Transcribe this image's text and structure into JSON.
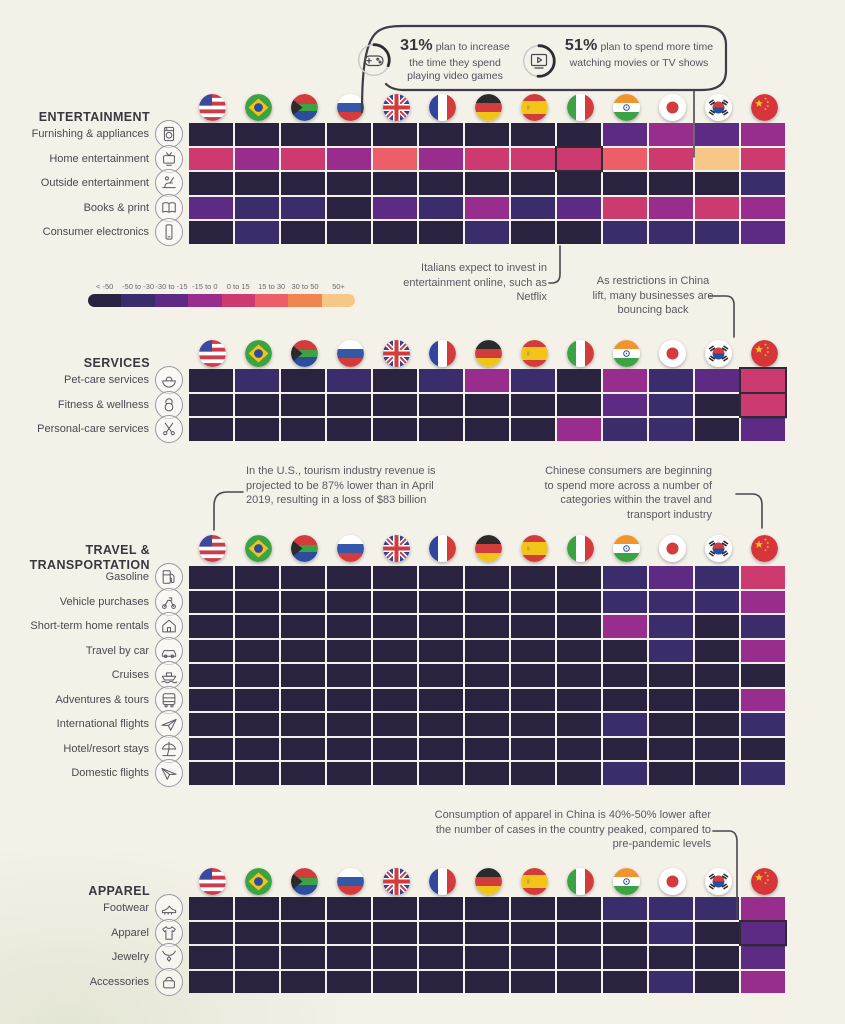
{
  "stats": {
    "items": [
      {
        "icon": "gamepad-icon",
        "value": "31%",
        "text": "plan to increase the time they spend playing video games"
      },
      {
        "icon": "tv-play-icon",
        "value": "51%",
        "text": "plan to spend more time watching movies or TV shows"
      }
    ]
  },
  "legend": {
    "labels": [
      "< -50",
      "-50 to -30",
      "-30 to -15",
      "-15 to 0",
      "0 to 15",
      "15 to 30",
      "30 to 50",
      "50+"
    ],
    "colors": [
      "#2a2340",
      "#3b2d6b",
      "#5d2a84",
      "#982d8e",
      "#cd3a70",
      "#ed5f68",
      "#ef854f",
      "#f6c787"
    ],
    "highlight_border": "#2e2b37"
  },
  "countries": [
    {
      "name": "United States",
      "code": "us"
    },
    {
      "name": "Brazil",
      "code": "br"
    },
    {
      "name": "South Africa",
      "code": "za"
    },
    {
      "name": "Russia",
      "code": "ru"
    },
    {
      "name": "United Kingdom",
      "code": "gb"
    },
    {
      "name": "France",
      "code": "fr"
    },
    {
      "name": "Germany",
      "code": "de"
    },
    {
      "name": "Spain",
      "code": "es"
    },
    {
      "name": "Italy",
      "code": "it"
    },
    {
      "name": "India",
      "code": "in"
    },
    {
      "name": "Japan",
      "code": "jp"
    },
    {
      "name": "South Korea",
      "code": "kr"
    },
    {
      "name": "China",
      "code": "cn"
    }
  ],
  "annotations": [
    {
      "id": "italy-netflix",
      "text": "Italians expect to invest in entertainment online, such as Netflix"
    },
    {
      "id": "china-bounce-back",
      "text": "As restrictions in China lift, many businesses are bouncing back"
    },
    {
      "id": "us-tourism",
      "text": "In the U.S., tourism industry revenue is projected to be 87% lower than in April 2019, resulting in a loss of $83 billion"
    },
    {
      "id": "china-travel-spend",
      "text": "Chinese consumers are beginning to spend more across a number of categories within the travel and transport industry"
    },
    {
      "id": "china-apparel",
      "text": "Consumption of apparel in China is 40%-50% lower after the number of cases in the country peaked, compared to pre-pandemic levels"
    }
  ],
  "chart_data": {
    "type": "heatmap",
    "value_buckets": [
      "< -50",
      "-50 to -30",
      "-30 to -15",
      "-15 to 0",
      "0 to 15",
      "15 to 30",
      "30 to 50",
      "50+"
    ],
    "columns": [
      "United States",
      "Brazil",
      "South Africa",
      "Russia",
      "United Kingdom",
      "France",
      "Germany",
      "Spain",
      "Italy",
      "India",
      "Japan",
      "South Korea",
      "China"
    ],
    "note": "cell values are bucket indices 0-7 into value_buckets"
  },
  "sections": [
    {
      "title": "ENTERTAINMENT",
      "rows": [
        {
          "label": "Furnishing & appliances",
          "icon": "washing-machine-icon",
          "values": [
            0,
            0,
            0,
            0,
            0,
            0,
            0,
            0,
            0,
            2,
            3,
            2,
            3
          ]
        },
        {
          "label": "Home entertainment",
          "icon": "tv-icon",
          "values": [
            4,
            3,
            4,
            3,
            5,
            3,
            4,
            4,
            4,
            5,
            4,
            7,
            4
          ],
          "highlight": [
            8
          ]
        },
        {
          "label": "Outside entertainment",
          "icon": "picnic-icon",
          "values": [
            0,
            0,
            0,
            0,
            0,
            0,
            0,
            0,
            0,
            0,
            0,
            0,
            1
          ]
        },
        {
          "label": "Books & print",
          "icon": "book-icon",
          "values": [
            2,
            1,
            1,
            0,
            2,
            1,
            3,
            1,
            2,
            4,
            3,
            4,
            3
          ]
        },
        {
          "label": "Consumer electronics",
          "icon": "smartphone-icon",
          "values": [
            0,
            1,
            0,
            0,
            0,
            0,
            1,
            0,
            0,
            1,
            1,
            1,
            2
          ]
        }
      ]
    },
    {
      "title": "SERVICES",
      "rows": [
        {
          "label": "Pet-care services",
          "icon": "pet-food-icon",
          "values": [
            0,
            1,
            0,
            1,
            0,
            1,
            3,
            1,
            0,
            3,
            1,
            2,
            4
          ],
          "highlight": [
            12
          ]
        },
        {
          "label": "Fitness & wellness",
          "icon": "fitness-icon",
          "values": [
            0,
            0,
            0,
            0,
            0,
            0,
            0,
            0,
            0,
            2,
            1,
            0,
            4
          ],
          "highlight": [
            12
          ]
        },
        {
          "label": "Personal-care services",
          "icon": "personal-care-icon",
          "values": [
            0,
            0,
            0,
            0,
            0,
            0,
            0,
            0,
            3,
            1,
            1,
            0,
            2
          ]
        }
      ]
    },
    {
      "title": "TRAVEL & TRANSPORTATION",
      "rows": [
        {
          "label": "Gasoline",
          "icon": "gas-pump-icon",
          "values": [
            0,
            0,
            0,
            0,
            0,
            0,
            0,
            0,
            0,
            1,
            2,
            1,
            4
          ]
        },
        {
          "label": "Vehicle purchases",
          "icon": "scooter-icon",
          "values": [
            0,
            0,
            0,
            0,
            0,
            0,
            0,
            0,
            0,
            1,
            1,
            1,
            3
          ]
        },
        {
          "label": "Short-term home rentals",
          "icon": "house-icon",
          "values": [
            0,
            0,
            0,
            0,
            0,
            0,
            0,
            0,
            0,
            3,
            1,
            0,
            1
          ]
        },
        {
          "label": "Travel by car",
          "icon": "car-icon",
          "values": [
            0,
            0,
            0,
            0,
            0,
            0,
            0,
            0,
            0,
            0,
            1,
            0,
            3
          ]
        },
        {
          "label": "Cruises",
          "icon": "ship-icon",
          "values": [
            0,
            0,
            0,
            0,
            0,
            0,
            0,
            0,
            0,
            0,
            0,
            0,
            0
          ]
        },
        {
          "label": "Adventures & tours",
          "icon": "bus-icon",
          "values": [
            0,
            0,
            0,
            0,
            0,
            0,
            0,
            0,
            0,
            0,
            0,
            0,
            3
          ]
        },
        {
          "label": "International flights",
          "icon": "plane-icon",
          "values": [
            0,
            0,
            0,
            0,
            0,
            0,
            0,
            0,
            0,
            1,
            0,
            0,
            1
          ]
        },
        {
          "label": "Hotel/resort stays",
          "icon": "beach-icon",
          "values": [
            0,
            0,
            0,
            0,
            0,
            0,
            0,
            0,
            0,
            0,
            0,
            0,
            0
          ]
        },
        {
          "label": "Domestic flights",
          "icon": "plane-alt-icon",
          "values": [
            0,
            0,
            0,
            0,
            0,
            0,
            0,
            0,
            0,
            1,
            0,
            0,
            1
          ]
        }
      ]
    },
    {
      "title": "APPAREL",
      "rows": [
        {
          "label": "Footwear",
          "icon": "footwear-icon",
          "values": [
            0,
            0,
            0,
            0,
            0,
            0,
            0,
            0,
            0,
            1,
            1,
            1,
            3
          ]
        },
        {
          "label": "Apparel",
          "icon": "tshirt-icon",
          "values": [
            0,
            0,
            0,
            0,
            0,
            0,
            0,
            0,
            0,
            0,
            1,
            0,
            2
          ],
          "highlight": [
            12
          ]
        },
        {
          "label": "Jewelry",
          "icon": "jewelry-icon",
          "values": [
            0,
            0,
            0,
            0,
            0,
            0,
            0,
            0,
            0,
            0,
            0,
            0,
            2
          ]
        },
        {
          "label": "Accessories",
          "icon": "bag-icon",
          "values": [
            0,
            0,
            0,
            0,
            0,
            0,
            0,
            0,
            0,
            0,
            1,
            0,
            3
          ]
        }
      ]
    }
  ]
}
